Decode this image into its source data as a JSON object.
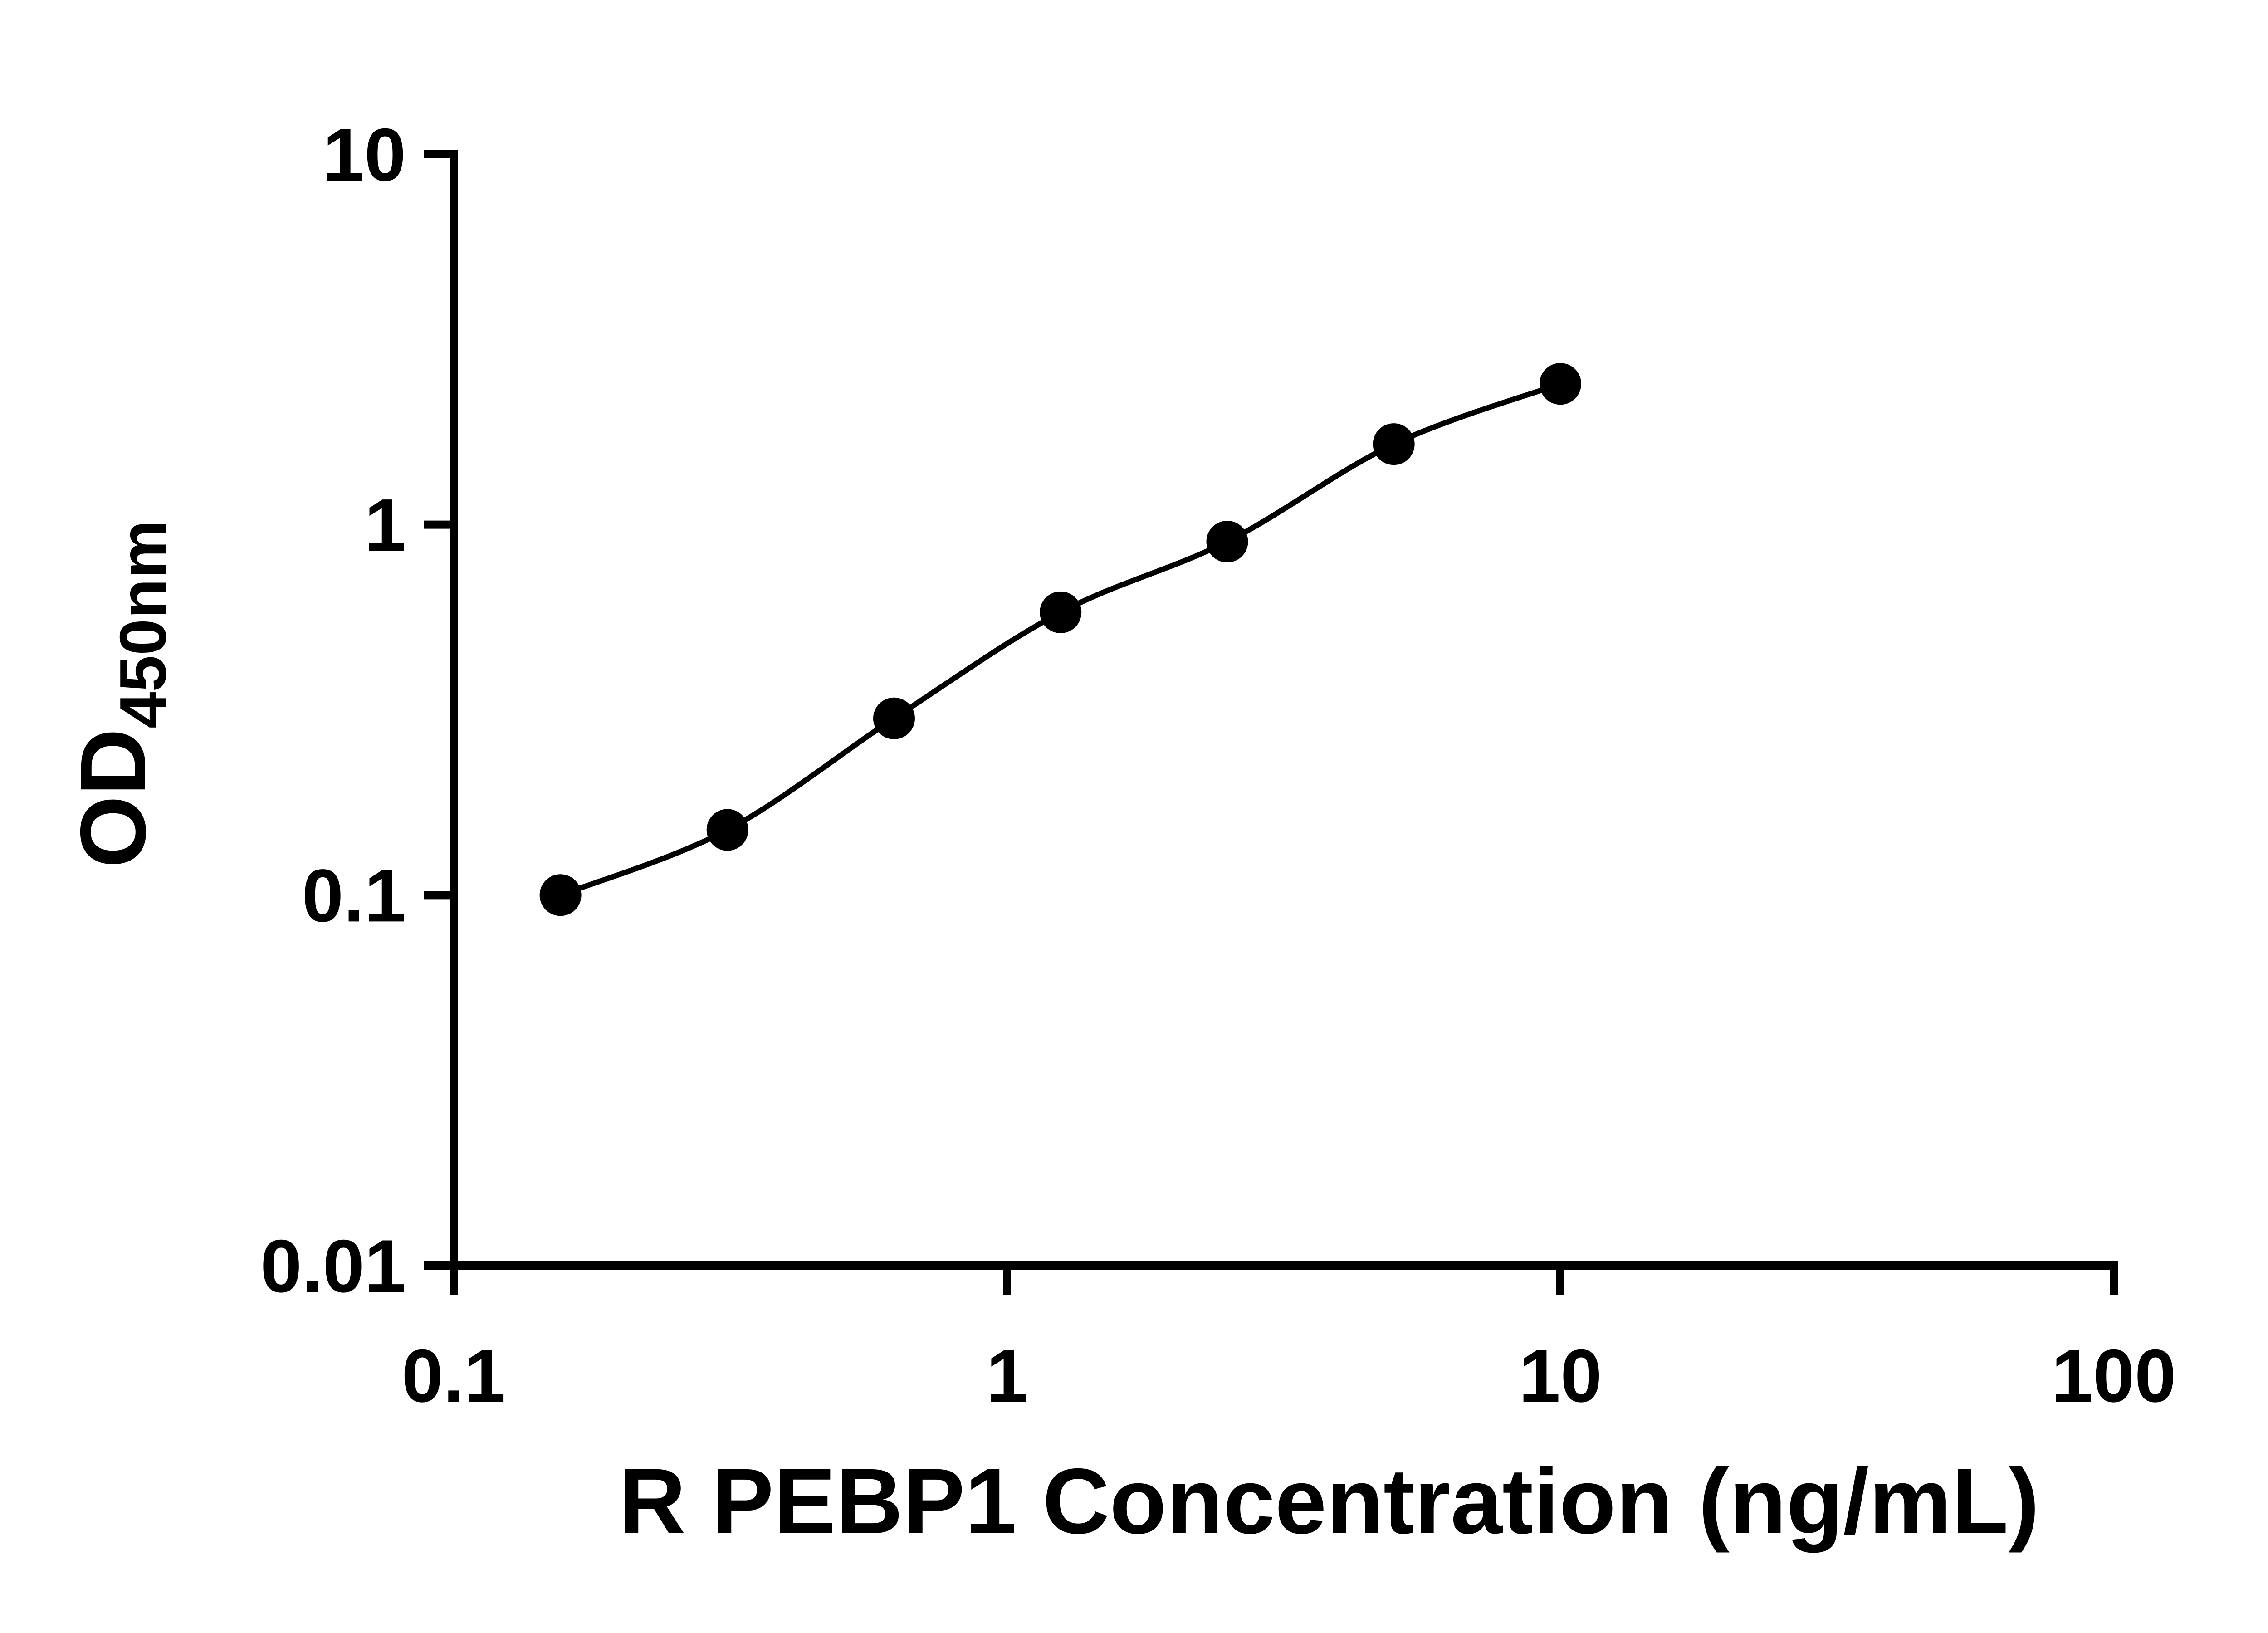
{
  "chart_data": {
    "type": "scatter",
    "title": "",
    "xlabel": "R PEBP1 Concentration (ng/mL)",
    "ylabel_main": "OD",
    "ylabel_sub": "450nm",
    "x": [
      0.156,
      0.3125,
      0.625,
      1.25,
      2.5,
      5,
      10
    ],
    "y": [
      0.1,
      0.15,
      0.3,
      0.58,
      0.9,
      1.65,
      2.4
    ],
    "xscale": "log",
    "yscale": "log",
    "xlim": [
      0.1,
      100
    ],
    "ylim": [
      0.01,
      10
    ],
    "x_ticks": [
      {
        "value": 0.1,
        "label": "0.1"
      },
      {
        "value": 1,
        "label": "1"
      },
      {
        "value": 10,
        "label": "10"
      },
      {
        "value": 100,
        "label": "100"
      }
    ],
    "y_ticks": [
      {
        "value": 0.01,
        "label": "0.01"
      },
      {
        "value": 0.1,
        "label": "0.1"
      },
      {
        "value": 1,
        "label": "1"
      },
      {
        "value": 10,
        "label": "10"
      }
    ],
    "grid": false,
    "legend": "none",
    "line_style": "smooth",
    "marker": "filled-circle",
    "colors": {
      "line": "#000000",
      "marker": "#000000",
      "axis": "#000000",
      "background": "#ffffff"
    }
  }
}
